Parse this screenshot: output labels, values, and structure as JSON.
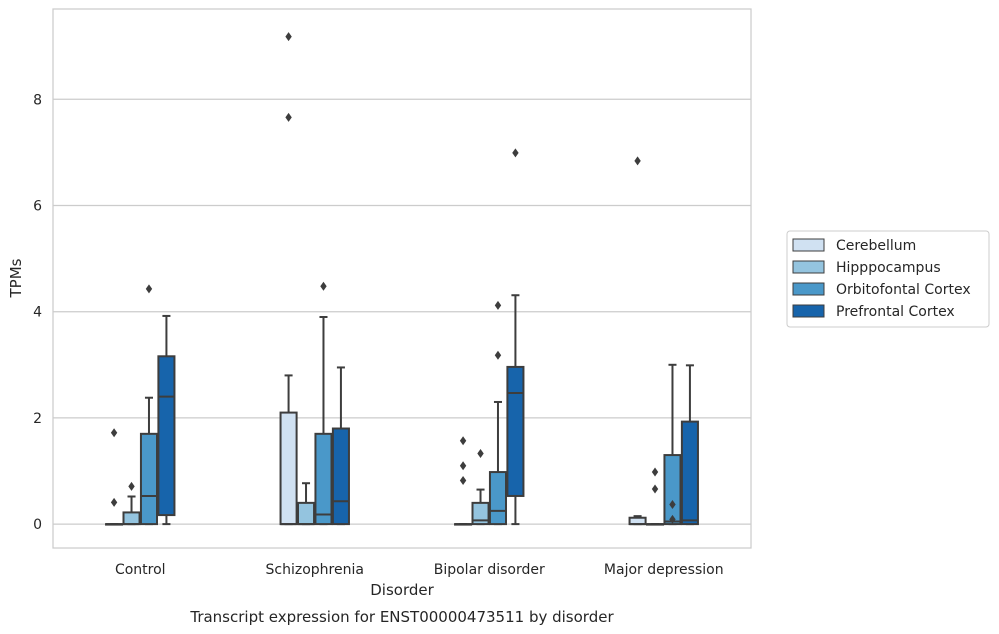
{
  "chart_data": {
    "type": "boxplot",
    "title": "Transcript expression for ENST00000473511 by disorder",
    "xlabel": "Disorder",
    "ylabel": "TPMs",
    "categories": [
      "Control",
      "Schizophrenia",
      "Bipolar disorder",
      "Major depression"
    ],
    "yticks": [
      0,
      2,
      4,
      6,
      8
    ],
    "ylim": [
      -0.45,
      9.7
    ],
    "grid": true,
    "legend_position": "right, outside plot",
    "series": [
      {
        "name": "Cerebellum",
        "color": "#d0e1f2",
        "boxes": [
          {
            "whislo": 0,
            "q1": 0,
            "med": 0,
            "q3": 0,
            "whishi": 0,
            "fliers": [
              1.72,
              0.41
            ]
          },
          {
            "whislo": 0,
            "q1": 0,
            "med": 0,
            "q3": 2.1,
            "whishi": 2.8,
            "fliers": [
              9.18,
              7.66
            ]
          },
          {
            "whislo": 0,
            "q1": 0,
            "med": 0,
            "q3": 0,
            "whishi": 0,
            "fliers": [
              1.57,
              1.1,
              0.82
            ]
          },
          {
            "whislo": 0,
            "q1": 0,
            "med": 0,
            "q3": 0.12,
            "whishi": 0.15,
            "fliers": [
              6.84
            ]
          }
        ]
      },
      {
        "name": "Hipppocampus",
        "color": "#94c4df",
        "boxes": [
          {
            "whislo": 0,
            "q1": 0,
            "med": 0,
            "q3": 0.22,
            "whishi": 0.52,
            "fliers": [
              0.71
            ]
          },
          {
            "whislo": 0,
            "q1": 0,
            "med": 0,
            "q3": 0.4,
            "whishi": 0.77,
            "fliers": []
          },
          {
            "whislo": 0,
            "q1": 0,
            "med": 0.07,
            "q3": 0.4,
            "whishi": 0.65,
            "fliers": [
              1.33
            ]
          },
          {
            "whislo": 0,
            "q1": 0,
            "med": 0,
            "q3": 0,
            "whishi": 0,
            "fliers": [
              0.98,
              0.66
            ]
          }
        ]
      },
      {
        "name": "Orbitofontal Cortex",
        "color": "#4a98c9",
        "boxes": [
          {
            "whislo": 0,
            "q1": 0,
            "med": 0.53,
            "q3": 1.7,
            "whishi": 2.38,
            "fliers": [
              4.43
            ]
          },
          {
            "whislo": 0,
            "q1": 0,
            "med": 0.18,
            "q3": 1.7,
            "whishi": 3.9,
            "fliers": [
              4.48
            ]
          },
          {
            "whislo": 0,
            "q1": 0,
            "med": 0.25,
            "q3": 0.98,
            "whishi": 2.3,
            "fliers": [
              4.12,
              3.18
            ]
          },
          {
            "whislo": 0,
            "q1": 0,
            "med": 0.05,
            "q3": 1.3,
            "whishi": 3.0,
            "fliers": [
              0.37,
              0.09
            ]
          }
        ]
      },
      {
        "name": "Prefrontal Cortex",
        "color": "#1764ab",
        "boxes": [
          {
            "whislo": 0,
            "q1": 0.17,
            "med": 2.4,
            "q3": 3.16,
            "whishi": 3.92,
            "fliers": []
          },
          {
            "whislo": 0,
            "q1": 0,
            "med": 0.43,
            "q3": 1.8,
            "whishi": 2.95,
            "fliers": []
          },
          {
            "whislo": 0,
            "q1": 0.53,
            "med": 2.47,
            "q3": 2.96,
            "whishi": 4.31,
            "fliers": [
              6.99
            ]
          },
          {
            "whislo": 0,
            "q1": 0,
            "med": 0.07,
            "q3": 1.93,
            "whishi": 2.99,
            "fliers": []
          }
        ]
      }
    ]
  }
}
